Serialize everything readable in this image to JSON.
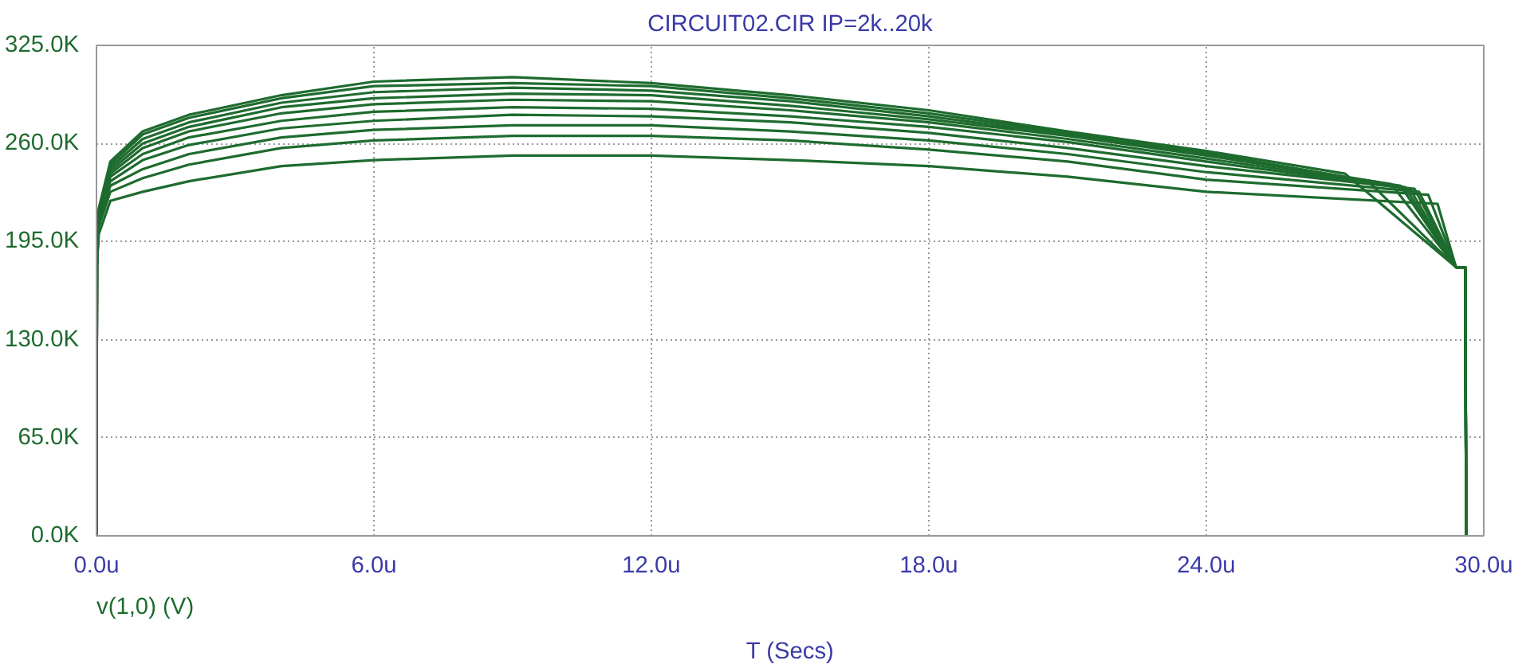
{
  "chart_data": {
    "type": "line",
    "title": "CIRCUIT02.CIR IP=2k..20k",
    "xlabel": "T (Secs)",
    "annotations": [
      "v(1,0) (V)"
    ],
    "xlim": [
      0,
      30
    ],
    "ylim": [
      0,
      325
    ],
    "xticks": [
      {
        "value": 0,
        "label": "0.0u"
      },
      {
        "value": 6,
        "label": "6.0u"
      },
      {
        "value": 12,
        "label": "12.0u"
      },
      {
        "value": 18,
        "label": "18.0u"
      },
      {
        "value": 24,
        "label": "24.0u"
      },
      {
        "value": 30,
        "label": "30.0u"
      }
    ],
    "yticks": [
      {
        "value": 0,
        "label": "0.0K"
      },
      {
        "value": 65,
        "label": "65.0K"
      },
      {
        "value": 130,
        "label": "130.0K"
      },
      {
        "value": 195,
        "label": "195.0K"
      },
      {
        "value": 260,
        "label": "260.0K"
      },
      {
        "value": 325,
        "label": "325.0K"
      }
    ],
    "grid": true,
    "marker": "none",
    "line_style": "solid",
    "series": [
      {
        "color": "#1e6b2e",
        "x": [
          0,
          0.01,
          0.05,
          0.3,
          1,
          2,
          4,
          6,
          9,
          12,
          15,
          18,
          21,
          24,
          29.0,
          29.4,
          29.6,
          29.62
        ],
        "values": [
          0,
          180,
          200,
          222,
          228,
          235,
          245,
          249,
          252,
          252,
          249,
          245,
          238,
          228,
          220,
          178,
          178,
          0
        ]
      },
      {
        "color": "#1e6b2e",
        "x": [
          0,
          0.01,
          0.05,
          0.3,
          1,
          2,
          4,
          6,
          9,
          12,
          15,
          18,
          21,
          24,
          28.8,
          29.4,
          29.6,
          29.62
        ],
        "values": [
          0,
          180,
          205,
          228,
          237,
          246,
          257,
          262,
          265,
          265,
          262,
          256,
          248,
          236,
          226,
          178,
          178,
          0
        ]
      },
      {
        "color": "#1e6b2e",
        "x": [
          0,
          0.01,
          0.05,
          0.3,
          1,
          2,
          4,
          6,
          9,
          12,
          15,
          18,
          21,
          24,
          28.6,
          29.4,
          29.6,
          29.62
        ],
        "values": [
          0,
          180,
          208,
          232,
          243,
          253,
          264,
          269,
          272,
          272,
          268,
          262,
          253,
          241,
          228,
          178,
          178,
          0
        ]
      },
      {
        "color": "#1e6b2e",
        "x": [
          0,
          0.01,
          0.05,
          0.3,
          1,
          2,
          4,
          6,
          9,
          12,
          15,
          18,
          21,
          24,
          28.5,
          29.4,
          29.6,
          29.62
        ],
        "values": [
          0,
          180,
          210,
          235,
          249,
          259,
          270,
          275,
          279,
          278,
          274,
          267,
          257,
          245,
          230,
          178,
          178,
          0
        ]
      },
      {
        "color": "#1e6b2e",
        "x": [
          0,
          0.01,
          0.05,
          0.3,
          1,
          2,
          4,
          6,
          9,
          12,
          15,
          18,
          21,
          24,
          28.4,
          29.4,
          29.6,
          29.62
        ],
        "values": [
          0,
          180,
          212,
          238,
          253,
          264,
          275,
          281,
          284,
          283,
          278,
          271,
          261,
          248,
          230,
          178,
          178,
          0
        ]
      },
      {
        "color": "#1e6b2e",
        "x": [
          0,
          0.01,
          0.05,
          0.3,
          1,
          2,
          4,
          6,
          9,
          12,
          15,
          18,
          21,
          24,
          28.3,
          29.4,
          29.6,
          29.62
        ],
        "values": [
          0,
          180,
          213,
          240,
          257,
          268,
          280,
          286,
          289,
          288,
          282,
          274,
          263,
          250,
          231,
          178,
          178,
          0
        ]
      },
      {
        "color": "#1e6b2e",
        "x": [
          0,
          0.01,
          0.05,
          0.3,
          1,
          2,
          4,
          6,
          9,
          12,
          15,
          18,
          21,
          24,
          28.2,
          29.4,
          29.6,
          29.62
        ],
        "values": [
          0,
          180,
          214,
          242,
          260,
          271,
          284,
          290,
          293,
          292,
          285,
          276,
          265,
          252,
          232,
          178,
          178,
          0
        ]
      },
      {
        "color": "#1e6b2e",
        "x": [
          0,
          0.01,
          0.05,
          0.3,
          1,
          2,
          4,
          6,
          9,
          12,
          15,
          18,
          21,
          24,
          28.0,
          29.4,
          29.6,
          29.62
        ],
        "values": [
          0,
          180,
          215,
          244,
          263,
          274,
          287,
          294,
          297,
          295,
          288,
          278,
          266,
          253,
          233,
          178,
          178,
          0
        ]
      },
      {
        "color": "#1e6b2e",
        "x": [
          0,
          0.01,
          0.05,
          0.3,
          1,
          2,
          4,
          6,
          9,
          12,
          15,
          18,
          21,
          24,
          27.5,
          29.4,
          29.6,
          29.62
        ],
        "values": [
          0,
          180,
          216,
          246,
          266,
          277,
          290,
          298,
          300,
          298,
          290,
          280,
          267,
          254,
          235,
          178,
          178,
          0
        ]
      },
      {
        "color": "#1e6b2e",
        "x": [
          0,
          0.01,
          0.05,
          0.3,
          1,
          2,
          4,
          6,
          9,
          12,
          15,
          18,
          21,
          24,
          27.0,
          29.4,
          29.6,
          29.62
        ],
        "values": [
          0,
          180,
          217,
          248,
          268,
          279,
          292,
          301,
          304,
          300,
          292,
          282,
          268,
          255,
          240,
          178,
          178,
          0
        ]
      }
    ]
  }
}
